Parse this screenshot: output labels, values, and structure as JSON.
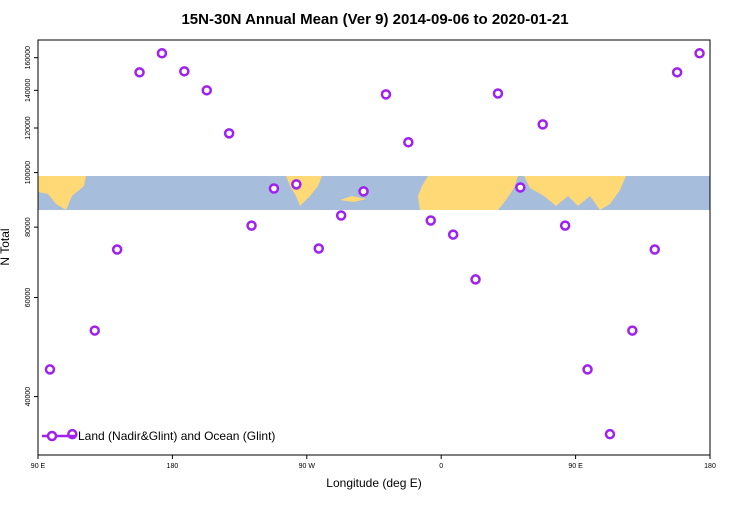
{
  "chart_data": {
    "type": "scatter",
    "title": "15N-30N Annual Mean (Ver 9)   2014-09-06 to 2020-01-21",
    "x_label": "Longitude (deg E)",
    "y_label": "N Total",
    "x": [
      98,
      113,
      128,
      143,
      158,
      173,
      188,
      203,
      218,
      233,
      248,
      263,
      278,
      293,
      308,
      323,
      338,
      353,
      368,
      383,
      398,
      413,
      428,
      443,
      458,
      473,
      488,
      503,
      518,
      533
    ],
    "series": [
      {
        "name": "Land (Nadir&Glint) and Ocean (Glint)",
        "color": "#a020f0",
        "values": [
          44700,
          34300,
          52400,
          73000,
          150700,
          162900,
          151300,
          140000,
          117400,
          80500,
          93700,
          95300,
          73300,
          83900,
          92600,
          137700,
          113200,
          82200,
          77600,
          64600,
          138200,
          94100,
          121800,
          80500,
          44700,
          34300,
          52400,
          73000,
          150700,
          162900
        ]
      }
    ],
    "xlim": [
      90,
      540
    ],
    "ylim": [
      31500,
      172000
    ],
    "log_y": true,
    "xticks": [
      {
        "value": 90,
        "label": "90 E"
      },
      180,
      {
        "value": 270,
        "label": "90 W"
      },
      {
        "value": 360,
        "label": "0"
      },
      {
        "value": 450,
        "label": "90 E"
      },
      {
        "value": 540,
        "label": "180"
      }
    ],
    "yticks": [
      40000,
      60000,
      80000,
      100000,
      120000,
      140000,
      160000
    ],
    "legend": "bottom left"
  }
}
